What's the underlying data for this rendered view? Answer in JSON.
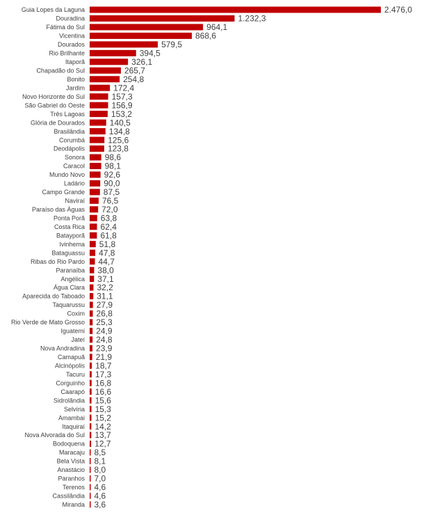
{
  "chart_data": {
    "type": "bar",
    "orientation": "horizontal",
    "title": "",
    "xlabel": "",
    "ylabel": "",
    "grid": false,
    "legend": "none",
    "bar_color": "#c00000",
    "text_color": "#404040",
    "xlim": [
      0,
      2476.0
    ],
    "categories": [
      "Guia Lopes da Laguna",
      "Douradina",
      "Fátima do Sul",
      "Vicentina",
      "Dourados",
      "Rio Brilhante",
      "Itaporã",
      "Chapadão do Sul",
      "Bonito",
      "Jardim",
      "Novo Horizonte do Sul",
      "São Gabriel do Oeste",
      "Três Lagoas",
      "Glória de Dourados",
      "Brasilândia",
      "Corumbá",
      "Deodápolis",
      "Sonora",
      "Caracol",
      "Mundo Novo",
      "Ladário",
      "Campo Grande",
      "Naviraí",
      "Paraíso das Águas",
      "Ponta Porã",
      "Costa Rica",
      "Batayporã",
      "Ivinhema",
      "Bataguassu",
      "Ribas do Rio Pardo",
      "Paranaíba",
      "Angélica",
      "Água Clara",
      "Aparecida do Taboado",
      "Taquarussu",
      "Coxim",
      "Rio Verde de Mato Grosso",
      "Iguatemi",
      "Jateí",
      "Nova Andradina",
      "Camapuã",
      "Alcinópolis",
      "Tacuru",
      "Corguinho",
      "Caarapó",
      "Sidrolândia",
      "Selvíria",
      "Amambai",
      "Itaquiraí",
      "Nova Alvorada do Sul",
      "Bodoquena",
      "Maracaju",
      "Bela Vista",
      "Anastácio",
      "Paranhos",
      "Terenos",
      "Cassilândia",
      "Miranda"
    ],
    "values": [
      2476.0,
      1232.3,
      964.1,
      868.6,
      579.5,
      394.5,
      326.1,
      265.7,
      254.8,
      172.4,
      157.3,
      156.9,
      153.2,
      140.5,
      134.8,
      125.6,
      123.8,
      98.6,
      98.1,
      92.6,
      90.0,
      87.5,
      76.5,
      72.0,
      63.8,
      62.4,
      61.8,
      51.8,
      47.8,
      44.7,
      38.0,
      37.1,
      32.2,
      31.1,
      27.9,
      26.8,
      25.3,
      24.9,
      24.8,
      23.9,
      21.9,
      18.7,
      17.3,
      16.8,
      16.6,
      15.6,
      15.3,
      15.2,
      14.2,
      13.7,
      12.7,
      8.5,
      8.1,
      8.0,
      7.0,
      4.6,
      4.6,
      3.6
    ],
    "value_labels": [
      "2.476,0",
      "1.232,3",
      "964,1",
      "868,6",
      "579,5",
      "394,5",
      "326,1",
      "265,7",
      "254,8",
      "172,4",
      "157,3",
      "156,9",
      "153,2",
      "140,5",
      "134,8",
      "125,6",
      "123,8",
      "98,6",
      "98,1",
      "92,6",
      "90,0",
      "87,5",
      "76,5",
      "72,0",
      "63,8",
      "62,4",
      "61,8",
      "51,8",
      "47,8",
      "44,7",
      "38,0",
      "37,1",
      "32,2",
      "31,1",
      "27,9",
      "26,8",
      "25,3",
      "24,9",
      "24,8",
      "23,9",
      "21,9",
      "18,7",
      "17,3",
      "16,8",
      "16,6",
      "15,6",
      "15,3",
      "15,2",
      "14,2",
      "13,7",
      "12,7",
      "8,5",
      "8,1",
      "8,0",
      "7,0",
      "4,6",
      "4,6",
      "3,6"
    ]
  }
}
